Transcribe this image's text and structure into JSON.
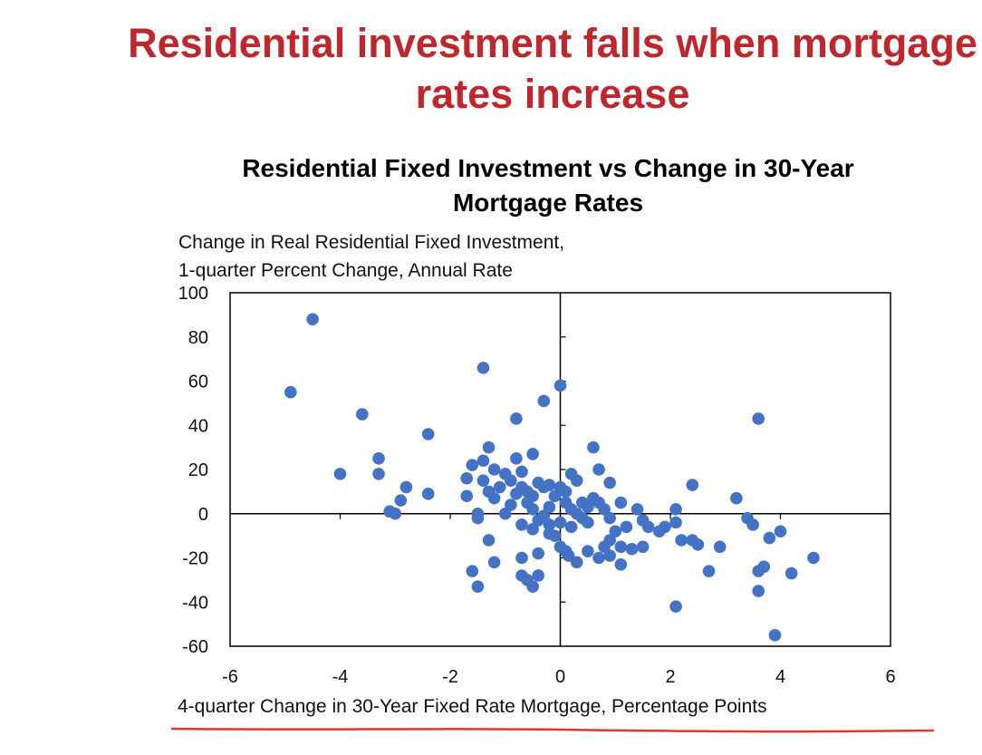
{
  "slide": {
    "title": "Residential investment falls when mortgage\nrates increase",
    "accent_color": "#c0272d"
  },
  "chart_data": {
    "type": "scatter",
    "title": "Residential Fixed Investment vs Change in 30-Year\nMortgage Rates",
    "ylabel": "Change in Real Residential Fixed Investment,\n1-quarter Percent Change, Annual Rate",
    "xlabel": "4-quarter Change in 30-Year Fixed  Rate Mortgage,  Percentage Points",
    "xlim": [
      -6,
      6
    ],
    "ylim": [
      -60,
      100
    ],
    "xticks": [
      -6,
      -4,
      -2,
      0,
      2,
      4,
      6
    ],
    "yticks": [
      100,
      80,
      60,
      40,
      20,
      0,
      -20,
      -40,
      -60
    ],
    "grid": false,
    "marker_color": "#4472c4",
    "underline_color": "#d93a2b",
    "points": [
      [
        -4.5,
        88
      ],
      [
        -4.9,
        55
      ],
      [
        -3.6,
        45
      ],
      [
        -3.3,
        25
      ],
      [
        -3.3,
        18
      ],
      [
        -4.0,
        18
      ],
      [
        -3.1,
        1
      ],
      [
        -3.0,
        0
      ],
      [
        -2.9,
        6
      ],
      [
        -2.8,
        12
      ],
      [
        -2.4,
        36
      ],
      [
        -2.4,
        9
      ],
      [
        -1.4,
        66
      ],
      [
        -0.8,
        43
      ],
      [
        -0.3,
        51
      ],
      [
        0.0,
        58
      ],
      [
        -1.6,
        22
      ],
      [
        -1.4,
        24
      ],
      [
        -1.3,
        30
      ],
      [
        -1.2,
        20
      ],
      [
        -1.4,
        15
      ],
      [
        -1.3,
        10
      ],
      [
        -1.2,
        7
      ],
      [
        -1.7,
        16
      ],
      [
        -1.7,
        8
      ],
      [
        -1.5,
        0
      ],
      [
        -1.5,
        -2
      ],
      [
        -1.3,
        -12
      ],
      [
        -1.2,
        -22
      ],
      [
        -1.6,
        -26
      ],
      [
        -1.5,
        -33
      ],
      [
        -1.0,
        18
      ],
      [
        -0.9,
        15
      ],
      [
        -0.8,
        25
      ],
      [
        -0.7,
        19
      ],
      [
        -0.5,
        27
      ],
      [
        -0.7,
        12
      ],
      [
        -0.6,
        10
      ],
      [
        -0.5,
        8
      ],
      [
        -0.4,
        14
      ],
      [
        -0.3,
        12
      ],
      [
        -0.2,
        13
      ],
      [
        -0.6,
        5
      ],
      [
        -0.5,
        2
      ],
      [
        -0.7,
        -5
      ],
      [
        -0.5,
        -7
      ],
      [
        -0.4,
        -3
      ],
      [
        -0.2,
        -5
      ],
      [
        -0.1,
        -10
      ],
      [
        0.0,
        -15
      ],
      [
        0.1,
        -17
      ],
      [
        -0.4,
        -18
      ],
      [
        -0.7,
        -20
      ],
      [
        -0.7,
        -28
      ],
      [
        -0.6,
        -30
      ],
      [
        -0.4,
        -28
      ],
      [
        -0.5,
        -33
      ],
      [
        -0.2,
        3
      ],
      [
        -0.1,
        8
      ],
      [
        0.0,
        12
      ],
      [
        0.1,
        10
      ],
      [
        0.2,
        18
      ],
      [
        0.3,
        15
      ],
      [
        0.1,
        5
      ],
      [
        0.2,
        2
      ],
      [
        0.3,
        0
      ],
      [
        0.4,
        -2
      ],
      [
        0.5,
        3
      ],
      [
        0.6,
        7
      ],
      [
        0.7,
        5
      ],
      [
        0.8,
        2
      ],
      [
        0.6,
        30
      ],
      [
        0.7,
        20
      ],
      [
        0.9,
        14
      ],
      [
        1.1,
        5
      ],
      [
        1.2,
        -6
      ],
      [
        1.0,
        -8
      ],
      [
        0.9,
        -12
      ],
      [
        0.8,
        -15
      ],
      [
        0.3,
        -22
      ],
      [
        0.5,
        -17
      ],
      [
        0.7,
        -20
      ],
      [
        0.9,
        -19
      ],
      [
        1.1,
        -15
      ],
      [
        1.1,
        -23
      ],
      [
        1.3,
        -16
      ],
      [
        1.5,
        -15
      ],
      [
        1.4,
        2
      ],
      [
        1.5,
        -3
      ],
      [
        1.6,
        -6
      ],
      [
        1.8,
        -8
      ],
      [
        1.9,
        -6
      ],
      [
        2.1,
        2
      ],
      [
        2.1,
        -4
      ],
      [
        2.2,
        -12
      ],
      [
        2.4,
        13
      ],
      [
        2.4,
        -12
      ],
      [
        2.5,
        -14
      ],
      [
        2.7,
        -26
      ],
      [
        2.1,
        -42
      ],
      [
        2.9,
        -15
      ],
      [
        3.2,
        7
      ],
      [
        3.4,
        -2
      ],
      [
        3.5,
        -5
      ],
      [
        3.6,
        43
      ],
      [
        3.6,
        -26
      ],
      [
        3.7,
        -24
      ],
      [
        3.6,
        -35
      ],
      [
        3.8,
        -11
      ],
      [
        4.0,
        -8
      ],
      [
        4.2,
        -27
      ],
      [
        3.9,
        -55
      ],
      [
        4.6,
        -20
      ],
      [
        0.0,
        -4
      ],
      [
        0.2,
        -6
      ],
      [
        -0.3,
        -1
      ],
      [
        -0.9,
        4
      ],
      [
        -1.0,
        0
      ],
      [
        0.4,
        5
      ],
      [
        -0.2,
        -9
      ],
      [
        0.5,
        -4
      ],
      [
        0.9,
        -2
      ],
      [
        -1.1,
        12
      ],
      [
        -0.8,
        9
      ],
      [
        0.15,
        -19
      ]
    ]
  }
}
